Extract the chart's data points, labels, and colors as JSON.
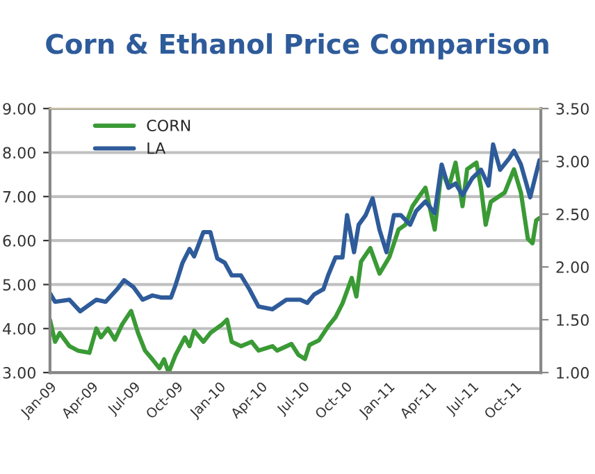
{
  "chart_data": {
    "type": "line",
    "title": "Corn & Ethanol Price Comparison",
    "xlim": [
      "2009-01-01",
      "2011-11-26"
    ],
    "xticks": [
      {
        "value": "2009-01",
        "label": "Jan-09"
      },
      {
        "value": "2009-04",
        "label": "Apr-09"
      },
      {
        "value": "2009-07",
        "label": "Jul-09"
      },
      {
        "value": "2009-10",
        "label": "Oct-09"
      },
      {
        "value": "2010-01",
        "label": "Jan-10"
      },
      {
        "value": "2010-04",
        "label": "Apr-10"
      },
      {
        "value": "2010-07",
        "label": "Jul-10"
      },
      {
        "value": "2010-10",
        "label": "Oct-10"
      },
      {
        "value": "2011-01",
        "label": "Jan-11"
      },
      {
        "value": "2011-04",
        "label": "Apr-11"
      },
      {
        "value": "2011-07",
        "label": "Jul-11"
      },
      {
        "value": "2011-10",
        "label": "Oct-11"
      }
    ],
    "ylim": [
      3,
      9
    ],
    "yticks": [
      {
        "value": 3,
        "label": "3.00"
      },
      {
        "value": 4,
        "label": "4.00"
      },
      {
        "value": 5,
        "label": "5.00"
      },
      {
        "value": 6,
        "label": "6.00"
      },
      {
        "value": 7,
        "label": "7.00"
      },
      {
        "value": 8,
        "label": "8.00"
      },
      {
        "value": 9,
        "label": "9.00"
      }
    ],
    "y2lim": [
      1,
      3.5
    ],
    "y2ticks": [
      {
        "value": 1,
        "label": "1.00"
      },
      {
        "value": 1.5,
        "label": "1.50"
      },
      {
        "value": 2,
        "label": "2.00"
      },
      {
        "value": 2.5,
        "label": "2.50"
      },
      {
        "value": 3,
        "label": "3.00"
      },
      {
        "value": 3.5,
        "label": "3.50"
      }
    ],
    "grid": "y",
    "legend": "top left",
    "series": [
      {
        "name": "CORN",
        "color": "#3a9a35",
        "x": [
          "2009-01-01",
          "2009-01-12",
          "2009-01-22",
          "2009-02-12",
          "2009-03-02",
          "2009-03-27",
          "2009-04-11",
          "2009-04-21",
          "2009-05-06",
          "2009-05-21",
          "2009-06-06",
          "2009-06-25",
          "2009-07-10",
          "2009-07-25",
          "2009-08-10",
          "2009-08-25",
          "2009-09-04",
          "2009-09-14",
          "2009-09-29",
          "2009-10-19",
          "2009-10-29",
          "2009-11-08",
          "2009-11-28",
          "2009-12-13",
          "2010-01-08",
          "2010-01-18",
          "2010-01-28",
          "2010-02-17",
          "2010-03-12",
          "2010-03-27",
          "2010-04-26",
          "2010-05-06",
          "2010-06-06",
          "2010-06-21",
          "2010-07-05",
          "2010-07-15",
          "2010-08-04",
          "2010-08-24",
          "2010-09-09",
          "2010-09-24",
          "2010-10-14",
          "2010-10-24",
          "2010-11-03",
          "2010-11-23",
          "2010-12-13",
          "2011-01-03",
          "2011-01-23",
          "2011-02-07",
          "2011-02-22",
          "2011-03-07",
          "2011-03-22",
          "2011-04-11",
          "2011-04-26",
          "2011-05-11",
          "2011-05-26",
          "2011-06-10",
          "2011-06-20",
          "2011-07-10",
          "2011-07-20",
          "2011-07-30",
          "2011-08-10",
          "2011-09-09",
          "2011-09-29",
          "2011-10-14",
          "2011-10-29",
          "2011-11-08",
          "2011-11-16",
          "2011-11-23"
        ],
        "values": [
          4.2,
          3.7,
          3.9,
          3.6,
          3.5,
          3.45,
          4.0,
          3.8,
          4.0,
          3.75,
          4.1,
          4.4,
          3.9,
          3.5,
          3.3,
          3.1,
          3.3,
          3.0,
          3.4,
          3.8,
          3.6,
          3.95,
          3.7,
          3.9,
          4.1,
          4.2,
          3.7,
          3.6,
          3.7,
          3.5,
          3.6,
          3.5,
          3.65,
          3.4,
          3.31,
          3.63,
          3.73,
          4.05,
          4.26,
          4.57,
          5.15,
          4.73,
          5.52,
          5.83,
          5.25,
          5.62,
          6.25,
          6.36,
          6.78,
          6.98,
          7.2,
          6.25,
          7.62,
          7.2,
          7.77,
          6.78,
          7.62,
          7.77,
          7.2,
          6.36,
          6.88,
          7.09,
          7.62,
          7.09,
          6.04,
          5.94,
          6.46,
          6.51
        ]
      },
      {
        "name": "LA",
        "color": "#2e5b9a",
        "axis": "y2",
        "x": [
          "2009-01-01",
          "2009-01-12",
          "2009-02-12",
          "2009-03-07",
          "2009-04-11",
          "2009-05-01",
          "2009-05-26",
          "2009-06-10",
          "2009-06-30",
          "2009-07-20",
          "2009-08-10",
          "2009-08-30",
          "2009-09-19",
          "2009-09-29",
          "2009-10-14",
          "2009-10-29",
          "2009-11-08",
          "2009-11-28",
          "2009-12-13",
          "2009-12-28",
          "2010-01-13",
          "2010-01-28",
          "2010-02-17",
          "2010-03-07",
          "2010-03-27",
          "2010-04-26",
          "2010-05-26",
          "2010-06-25",
          "2010-07-10",
          "2010-07-25",
          "2010-08-14",
          "2010-08-24",
          "2010-09-09",
          "2010-09-24",
          "2010-10-04",
          "2010-10-19",
          "2010-10-29",
          "2010-11-13",
          "2010-11-28",
          "2010-12-13",
          "2010-12-28",
          "2011-01-13",
          "2011-01-28",
          "2011-02-17",
          "2011-03-02",
          "2011-03-22",
          "2011-04-11",
          "2011-04-26",
          "2011-05-11",
          "2011-05-26",
          "2011-06-10",
          "2011-07-01",
          "2011-07-20",
          "2011-08-05",
          "2011-08-15",
          "2011-08-30",
          "2011-09-19",
          "2011-09-29",
          "2011-10-14",
          "2011-11-03",
          "2011-11-23"
        ],
        "values": [
          1.75,
          1.67,
          1.69,
          1.58,
          1.69,
          1.67,
          1.79,
          1.875,
          1.81,
          1.69,
          1.73,
          1.71,
          1.71,
          1.83,
          2.04,
          2.17,
          2.1,
          2.33,
          2.33,
          2.08,
          2.04,
          1.92,
          1.92,
          1.79,
          1.625,
          1.6,
          1.69,
          1.69,
          1.66,
          1.74,
          1.79,
          1.92,
          2.09,
          2.09,
          2.49,
          2.14,
          2.4,
          2.49,
          2.65,
          2.35,
          2.14,
          2.49,
          2.49,
          2.4,
          2.53,
          2.62,
          2.51,
          2.97,
          2.75,
          2.79,
          2.68,
          2.84,
          2.92,
          2.77,
          3.16,
          2.92,
          3.03,
          3.1,
          2.97,
          2.66,
          3.01
        ]
      }
    ]
  }
}
